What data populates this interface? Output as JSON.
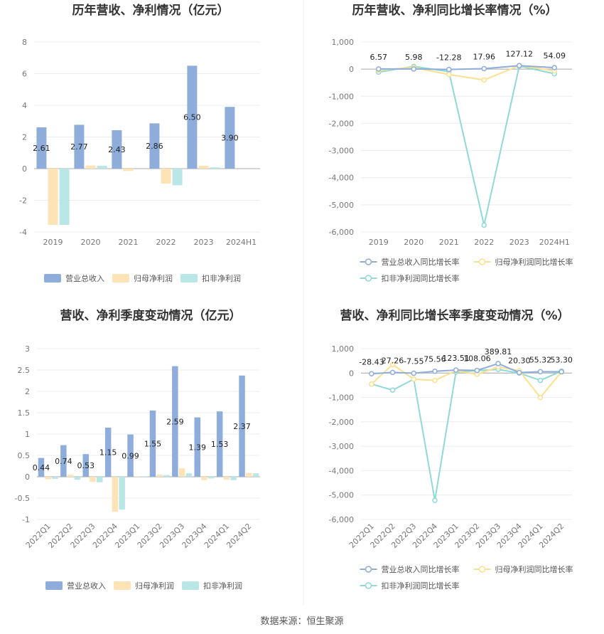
{
  "source": "数据来源：恒生聚源",
  "colors": {
    "revenue": "#8eaddb",
    "parent": "#fde3b6",
    "deducted": "#b9e7e5",
    "revenue_line": "#8eaddb",
    "parent_line": "#fde08e",
    "deducted_line": "#8fd9d7"
  },
  "chart_data": [
    {
      "type": "bar",
      "title": "历年营收、净利情况（亿元）",
      "categories": [
        "2019",
        "2020",
        "2021",
        "2022",
        "2023",
        "2024H1"
      ],
      "ylim": [
        -4,
        8
      ],
      "yticks": [
        "-4",
        "-2",
        "0",
        "2",
        "4",
        "6",
        "8"
      ],
      "grid": true,
      "legend": "bottom",
      "series": [
        {
          "name": "营业总收入",
          "values": [
            2.61,
            2.77,
            2.43,
            2.86,
            6.5,
            3.9
          ],
          "labels": [
            "2.61",
            "2.77",
            "2.43",
            "2.86",
            "6.50",
            "3.90"
          ]
        },
        {
          "name": "归母净利润",
          "values": [
            -3.55,
            0.2,
            -0.15,
            -0.95,
            0.18,
            0
          ]
        },
        {
          "name": "扣非净利润",
          "values": [
            -3.55,
            0.18,
            0,
            -1.05,
            0.08,
            0
          ]
        }
      ]
    },
    {
      "type": "line",
      "title": "历年营收、净利同比增长率情况（%）",
      "categories": [
        "2019",
        "2020",
        "2021",
        "2022",
        "2023",
        "2024H1"
      ],
      "ylim": [
        -6000,
        1000
      ],
      "yticks": [
        "-6,000",
        "-5,000",
        "-4,000",
        "-3,000",
        "-2,000",
        "-1,000",
        "0",
        "1,000"
      ],
      "grid": true,
      "legend": "bottom",
      "series": [
        {
          "name": "营业总收入同比增长率",
          "values": [
            6.57,
            5.98,
            -12.28,
            17.96,
            127.12,
            54.09
          ],
          "labels": [
            "6.57",
            "5.98",
            "-12.28",
            "17.96",
            "127.12",
            "54.09"
          ]
        },
        {
          "name": "归母净利润同比增长率",
          "values": [
            -40,
            60,
            -200,
            -400,
            130,
            -60
          ]
        },
        {
          "name": "扣非净利润同比增长率",
          "values": [
            -110,
            100,
            -90,
            -5750,
            110,
            -170
          ]
        }
      ]
    },
    {
      "type": "bar",
      "title": "营收、净利季度变动情况（亿元）",
      "categories": [
        "2022Q1",
        "2022Q2",
        "2022Q3",
        "2022Q4",
        "2023Q1",
        "2023Q2",
        "2023Q3",
        "2023Q4",
        "2024Q1",
        "2024Q2"
      ],
      "ylim": [
        -1,
        3
      ],
      "yticks": [
        "-1",
        "-0.5",
        "0",
        "0.5",
        "1",
        "1.5",
        "2",
        "2.5",
        "3"
      ],
      "grid": true,
      "legend": "bottom",
      "series": [
        {
          "name": "营业总收入",
          "values": [
            0.44,
            0.74,
            0.53,
            1.15,
            0.99,
            1.55,
            2.59,
            1.39,
            1.53,
            2.37
          ],
          "labels": [
            "0.44",
            "0.74",
            "0.53",
            "1.15",
            "0.99",
            "1.55",
            "2.59",
            "1.39",
            "1.53",
            "2.37"
          ]
        },
        {
          "name": "归母净利润",
          "values": [
            -0.06,
            0.05,
            -0.12,
            -0.82,
            0.01,
            0.05,
            0.2,
            -0.08,
            -0.07,
            0.09
          ]
        },
        {
          "name": "扣非净利润",
          "values": [
            -0.05,
            -0.07,
            -0.13,
            -0.77,
            0.01,
            0.04,
            0.08,
            -0.04,
            -0.08,
            0.08
          ]
        }
      ]
    },
    {
      "type": "line",
      "title": "营收、净利同比增长率季度变动情况（%）",
      "categories": [
        "2022Q1",
        "2022Q2",
        "2022Q3",
        "2022Q4",
        "2023Q1",
        "2023Q2",
        "2023Q3",
        "2023Q4",
        "2024Q1",
        "2024Q2"
      ],
      "ylim": [
        -6000,
        1000
      ],
      "yticks": [
        "-6,000",
        "-5,000",
        "-4,000",
        "-3,000",
        "-2,000",
        "-1,000",
        "0",
        "1,000"
      ],
      "grid": true,
      "legend": "bottom",
      "series": [
        {
          "name": "营业总收入同比增长率",
          "values": [
            -28.43,
            27.26,
            -7.55,
            75.56,
            123.51,
            108.06,
            389.81,
            20.3,
            55.32,
            53.3
          ],
          "labels": [
            "-28.43",
            "27.26",
            "-7.55",
            "75.56",
            "123.51",
            "108.06",
            "389.81",
            "20.30",
            "55.32",
            "53.30"
          ]
        },
        {
          "name": "归母净利润同比增长率",
          "values": [
            -450,
            350,
            -250,
            -300,
            100,
            -50,
            250,
            100,
            -1000,
            50
          ]
        },
        {
          "name": "扣非净利润同比增长率",
          "values": [
            -450,
            -700,
            -250,
            -5220,
            50,
            100,
            150,
            0,
            -300,
            80
          ]
        }
      ]
    }
  ]
}
